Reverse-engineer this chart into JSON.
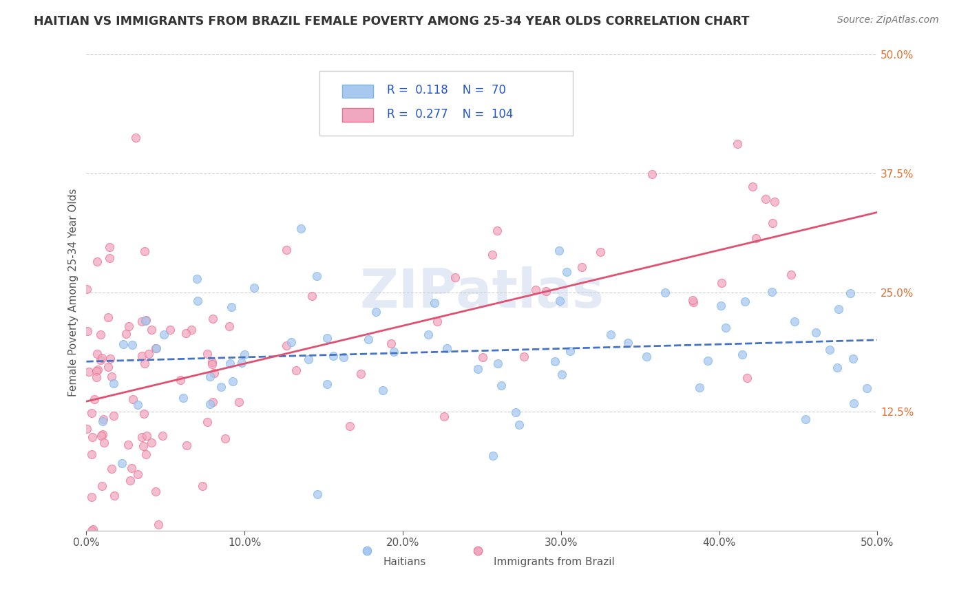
{
  "title": "HAITIAN VS IMMIGRANTS FROM BRAZIL FEMALE POVERTY AMONG 25-34 YEAR OLDS CORRELATION CHART",
  "source": "Source: ZipAtlas.com",
  "ylabel": "Female Poverty Among 25-34 Year Olds",
  "xlim": [
    0,
    0.5
  ],
  "ylim": [
    0,
    0.5
  ],
  "yticks": [
    0.125,
    0.25,
    0.375,
    0.5
  ],
  "ytick_labels": [
    "12.5%",
    "25.0%",
    "37.5%",
    "50.0%"
  ],
  "xticks": [
    0.0,
    0.1,
    0.2,
    0.3,
    0.4,
    0.5
  ],
  "xtick_labels": [
    "0.0%",
    "10.0%",
    "20.0%",
    "30.0%",
    "40.0%",
    "50.0%"
  ],
  "haiti_R": "0.118",
  "haiti_N": "70",
  "brazil_R": "0.277",
  "brazil_N": "104",
  "haiti_color_face": "#a8c8f0",
  "haiti_color_edge": "#7db8e8",
  "brazil_color_face": "#f0a8c0",
  "brazil_color_edge": "#f07090",
  "haiti_line_color": "#4472c4",
  "brazil_line_color": "#e05070",
  "watermark": "ZIPatlas",
  "background_color": "#ffffff",
  "legend_label_haiti": "Haitians",
  "legend_label_brazil": "Immigrants from Brazil"
}
